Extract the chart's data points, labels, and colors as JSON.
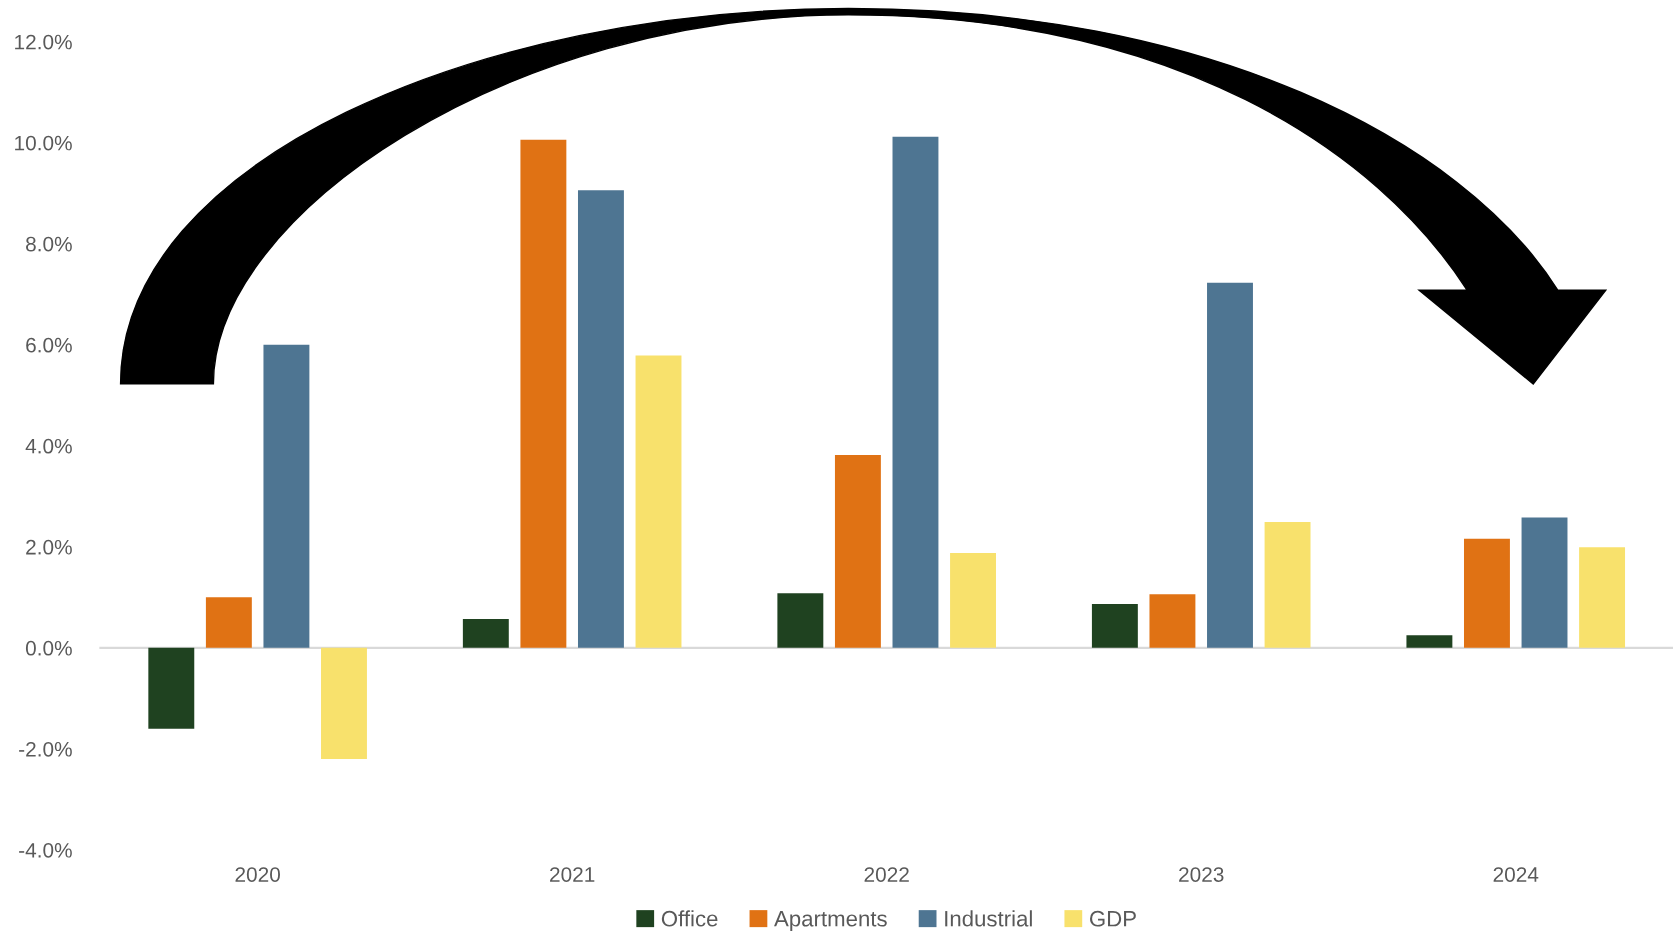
{
  "chart_data": {
    "type": "bar",
    "categories": [
      "2020",
      "2021",
      "2022",
      "2023",
      "2024"
    ],
    "series": [
      {
        "name": "Office",
        "color": "#1f4220",
        "values": [
          -1.6,
          0.57,
          1.08,
          0.87,
          0.25
        ]
      },
      {
        "name": "Apartments",
        "color": "#e07214",
        "values": [
          1.0,
          10.06,
          3.82,
          1.06,
          2.16
        ]
      },
      {
        "name": "Industrial",
        "color": "#4e7592",
        "values": [
          6.0,
          9.06,
          10.12,
          7.23,
          2.58
        ]
      },
      {
        "name": "GDP",
        "color": "#f8e16c",
        "values": [
          -2.2,
          5.79,
          1.88,
          2.49,
          1.99
        ]
      }
    ],
    "ylim": [
      -4,
      12
    ],
    "yticks": [
      {
        "value": -4,
        "label": "-4.0%"
      },
      {
        "value": -2,
        "label": "-2.0%"
      },
      {
        "value": 0,
        "label": "0.0%"
      },
      {
        "value": 2,
        "label": "2.0%"
      },
      {
        "value": 4,
        "label": "4.0%"
      },
      {
        "value": 6,
        "label": "6.0%"
      },
      {
        "value": 8,
        "label": "8.0%"
      },
      {
        "value": 10,
        "label": "10.0%"
      },
      {
        "value": 12,
        "label": "12.0%"
      }
    ],
    "legend": "bottom"
  }
}
